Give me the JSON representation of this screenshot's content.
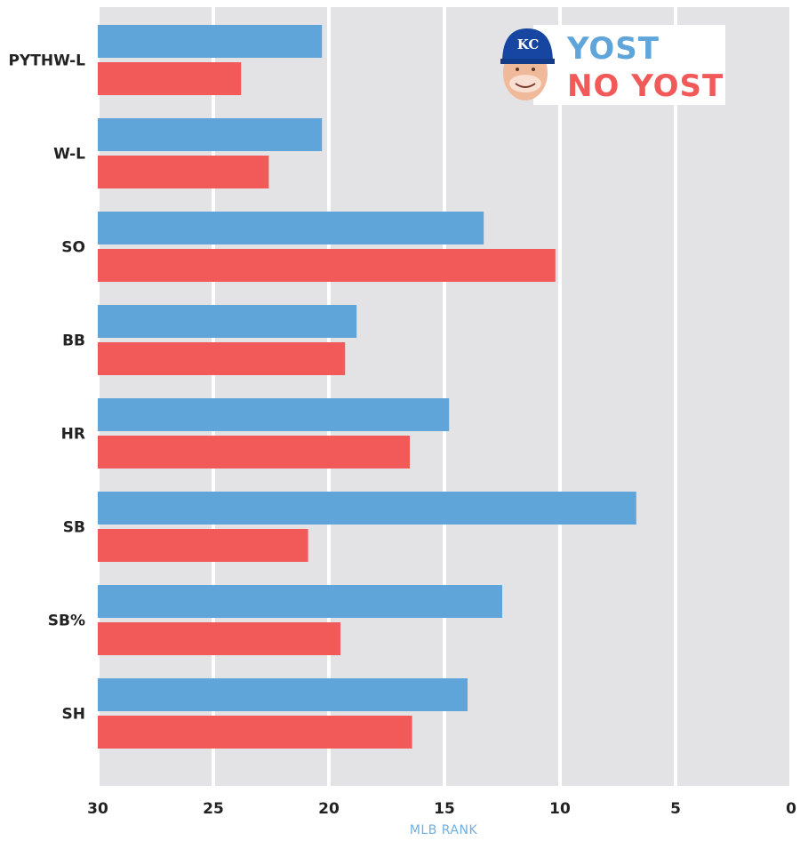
{
  "colors": {
    "yost": "#5fa5da",
    "no_yost": "#f25959",
    "panel_bg": "#e3e3e5",
    "gridline": "#ffffff",
    "axis_title": "#6fb0e0"
  },
  "legend": {
    "icon": "kc-royals-cap-manager-face-icon",
    "placement": "top-right"
  },
  "chart_data": {
    "type": "bar",
    "orientation": "horizontal",
    "x_axis_reversed": true,
    "categories": [
      "PYTHW-L",
      "W-L",
      "SO",
      "BB",
      "HR",
      "SB",
      "SB%",
      "SH"
    ],
    "series": [
      {
        "name": "YOST",
        "values": [
          20.3,
          20.3,
          13.3,
          18.8,
          14.8,
          6.7,
          12.5,
          14.0
        ]
      },
      {
        "name": "NO YOST",
        "values": [
          23.8,
          22.6,
          10.2,
          19.3,
          16.5,
          20.9,
          19.5,
          16.4
        ]
      }
    ],
    "xlabel": "MLB RANK",
    "ylabel": "",
    "xlim": [
      30,
      0
    ],
    "xticks": [
      "30",
      "25",
      "20",
      "15",
      "10",
      "5",
      "0"
    ],
    "grid": true
  }
}
